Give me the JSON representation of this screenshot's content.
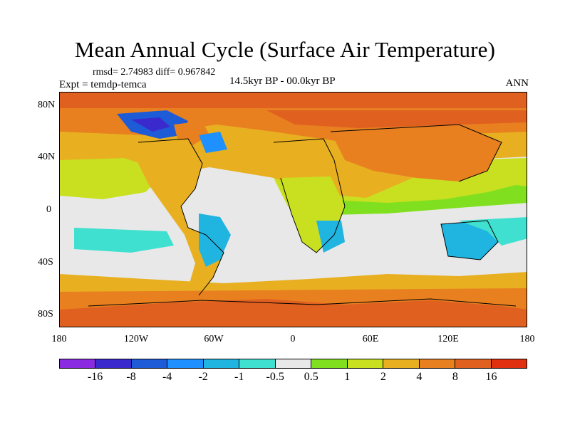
{
  "title": "Mean Annual Cycle (Surface Air Temperature)",
  "stats": "rmsd= 2.74983 diff= 0.967842",
  "experiment": "Expt = temdp-temca",
  "period": "14.5kyr BP - 00.0kyr BP",
  "season": "ANN",
  "y_axis_labels": [
    "80N",
    "40N",
    "0",
    "40S",
    "80S"
  ],
  "x_axis_labels": [
    "180",
    "120W",
    "60W",
    "0",
    "60E",
    "120E",
    "180"
  ],
  "colorbar": {
    "labels": [
      "-16",
      "-8",
      "-4",
      "-2",
      "-1",
      "-0.5",
      "0.5",
      "1",
      "2",
      "4",
      "8",
      "16"
    ],
    "colors": [
      "#8a2be2",
      "#3a2acd",
      "#1e5bd6",
      "#1e90ff",
      "#20b4e0",
      "#40e0d0",
      "#e8e8e8",
      "#80e020",
      "#c8e020",
      "#e8b020",
      "#e88020",
      "#e06020",
      "#e03010"
    ]
  }
}
